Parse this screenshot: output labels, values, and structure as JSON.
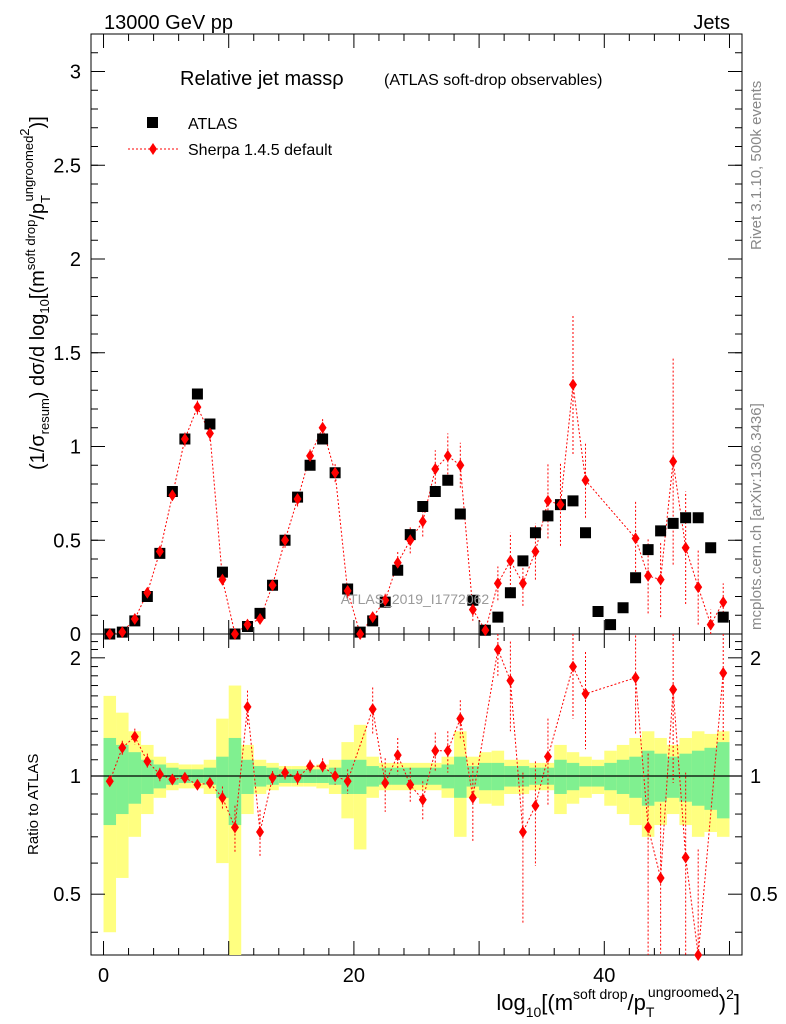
{
  "header": {
    "energy_label": "13000 GeV pp",
    "process_label": "Jets"
  },
  "side_labels": {
    "rivet": "Rivet 3.1.10,  500k events",
    "mcplots": "mcplots.cern.ch [arXiv:1306.3436]"
  },
  "chart_data": {
    "type": "scatter",
    "title": "Relative jet massρ",
    "subtitle": "(ATLAS soft-drop observables)",
    "watermark": "ATLAS_2019_I1772062",
    "ylabel": {
      "main": "(1/σ",
      "resum_sub": "resum",
      "mid": ") dσ/d log",
      "ten_sub": "10",
      "bracket": "[(m",
      "sd_sup": "soft drop",
      "slash_p": "/p",
      "t_sub": "T",
      "ungroomed_sup": "ungroomed",
      "square_sup": "2",
      "close": ")]"
    },
    "xlabel": {
      "log": "log",
      "ten_sub": "10",
      "bracket": "[(m",
      "sd_sup": "soft drop",
      "slash_p": "/p",
      "t_sub": "T",
      "ungroomed_sup": "ungroomed",
      "close": ")",
      "square_sup": "2",
      "end": "]"
    },
    "ratio_ylabel": "Ratio to ATLAS",
    "xlim": [
      -1,
      51
    ],
    "ylim": [
      0,
      3.2
    ],
    "ratio_ylim": [
      0.35,
      2.3
    ],
    "xticks": [
      0,
      20,
      40
    ],
    "xtick_labels": [
      "0",
      "20",
      "40"
    ],
    "yticks": [
      0,
      0.5,
      1,
      1.5,
      2,
      2.5,
      3
    ],
    "ytick_labels": [
      "0",
      "0.5",
      "1",
      "1.5",
      "2",
      "2.5",
      "3"
    ],
    "ratio_yticks": [
      0.5,
      1,
      2
    ],
    "ratio_ytick_labels": [
      "0.5",
      "1",
      "2"
    ],
    "legend": [
      "ATLAS",
      "Sherpa 1.4.5 default"
    ],
    "series": [
      {
        "name": "ATLAS",
        "color": "#000000",
        "marker": "square",
        "x": [
          0.5,
          1.5,
          2.5,
          3.5,
          4.5,
          5.5,
          6.5,
          7.5,
          8.5,
          9.5,
          10.5,
          11.5,
          12.5,
          13.5,
          14.5,
          15.5,
          16.5,
          17.5,
          18.5,
          19.5,
          20.5,
          21.5,
          22.5,
          23.5,
          24.5,
          25.5,
          26.5,
          27.5,
          28.5,
          29.5,
          30.5,
          31.5,
          32.5,
          33.5,
          34.5,
          35.5,
          36.5,
          37.5,
          38.5,
          39.5,
          40.5,
          41.5,
          42.5,
          43.5,
          44.5,
          45.5,
          46.5,
          47.5,
          48.5,
          49.5
        ],
        "y": [
          0.0,
          0.01,
          0.07,
          0.2,
          0.43,
          0.76,
          1.04,
          1.28,
          1.12,
          0.33,
          0.0,
          0.04,
          0.11,
          0.26,
          0.5,
          0.73,
          0.9,
          1.04,
          0.86,
          0.24,
          0.01,
          0.07,
          0.17,
          0.34,
          0.53,
          0.68,
          0.76,
          0.82,
          0.64,
          0.18,
          0.02,
          0.09,
          0.22,
          0.39,
          0.54,
          0.63,
          0.69,
          0.71,
          0.54,
          0.12,
          0.05,
          0.14,
          0.3,
          0.45,
          0.55,
          0.59,
          0.62,
          0.62,
          0.46,
          0.09
        ]
      },
      {
        "name": "Sherpa 1.4.5 default",
        "color": "#ff0000",
        "marker": "diamond",
        "x": [
          0.5,
          1.5,
          2.5,
          3.5,
          4.5,
          5.5,
          6.5,
          7.5,
          8.5,
          9.5,
          10.5,
          11.5,
          12.5,
          13.5,
          14.5,
          15.5,
          16.5,
          17.5,
          18.5,
          19.5,
          20.5,
          21.5,
          22.5,
          23.5,
          24.5,
          25.5,
          26.5,
          27.5,
          28.5,
          29.5,
          30.5,
          31.5,
          32.5,
          33.5,
          34.5,
          35.5,
          36.5,
          37.5,
          38.5,
          42.5,
          43.5,
          44.5,
          45.5,
          46.5,
          47.5,
          48.5,
          49.5
        ],
        "y": [
          0.0,
          0.01,
          0.08,
          0.22,
          0.44,
          0.74,
          1.04,
          1.21,
          1.07,
          0.29,
          0.0,
          0.05,
          0.08,
          0.26,
          0.5,
          0.72,
          0.95,
          1.1,
          0.86,
          0.23,
          0.0,
          0.09,
          0.18,
          0.38,
          0.5,
          0.6,
          0.88,
          0.95,
          0.9,
          0.13,
          0.02,
          0.27,
          0.39,
          0.27,
          0.44,
          0.71,
          0.69,
          1.33,
          0.82,
          0.51,
          0.31,
          0.29,
          0.92,
          0.46,
          0.25,
          0.05,
          0.17
        ],
        "err": [
          0.01,
          0.01,
          0.02,
          0.03,
          0.03,
          0.03,
          0.04,
          0.04,
          0.04,
          0.03,
          0.01,
          0.01,
          0.02,
          0.03,
          0.04,
          0.04,
          0.04,
          0.05,
          0.05,
          0.04,
          0.02,
          0.03,
          0.04,
          0.06,
          0.07,
          0.08,
          0.1,
          0.12,
          0.12,
          0.06,
          0.04,
          0.09,
          0.15,
          0.12,
          0.15,
          0.2,
          0.22,
          0.37,
          0.2,
          0.2,
          0.2,
          0.2,
          0.55,
          0.3,
          0.2,
          0.08,
          0.1
        ]
      }
    ],
    "ratio": {
      "x": [
        0.5,
        1.5,
        2.5,
        3.5,
        4.5,
        5.5,
        6.5,
        7.5,
        8.5,
        9.5,
        10.5,
        11.5,
        12.5,
        13.5,
        14.5,
        15.5,
        16.5,
        17.5,
        18.5,
        19.5,
        21.5,
        22.5,
        23.5,
        24.5,
        25.5,
        26.5,
        27.5,
        28.5,
        29.5,
        31.5,
        32.5,
        33.5,
        34.5,
        35.5,
        37.5,
        38.5,
        42.5,
        43.5,
        44.5,
        45.5,
        46.5,
        47.5,
        49.5
      ],
      "y": [
        0.97,
        1.18,
        1.26,
        1.09,
        1.01,
        0.98,
        0.99,
        0.95,
        0.96,
        0.88,
        0.74,
        1.5,
        0.72,
        0.99,
        1.02,
        0.99,
        1.06,
        1.06,
        1.0,
        0.97,
        1.48,
        0.96,
        1.13,
        0.95,
        0.87,
        1.16,
        1.16,
        1.4,
        0.88,
        2.1,
        1.75,
        0.72,
        0.84,
        1.12,
        1.9,
        1.62,
        1.78,
        0.74,
        0.55,
        1.66,
        0.62,
        0.35,
        1.83
      ],
      "err": [
        0.03,
        0.05,
        0.06,
        0.05,
        0.04,
        0.03,
        0.03,
        0.03,
        0.03,
        0.06,
        0.1,
        0.15,
        0.1,
        0.04,
        0.04,
        0.04,
        0.04,
        0.05,
        0.05,
        0.07,
        0.2,
        0.15,
        0.12,
        0.1,
        0.1,
        0.13,
        0.14,
        0.16,
        0.2,
        0.3,
        0.45,
        0.3,
        0.25,
        0.28,
        0.5,
        0.45,
        0.5,
        0.4,
        0.3,
        0.7,
        0.4,
        0.3,
        0.6
      ],
      "band_green": [
        0.25,
        0.2,
        0.15,
        0.1,
        0.07,
        0.05,
        0.04,
        0.04,
        0.05,
        0.12,
        0.25,
        0.1,
        0.06,
        0.05,
        0.04,
        0.04,
        0.04,
        0.04,
        0.05,
        0.1,
        0.1,
        0.06,
        0.05,
        0.05,
        0.05,
        0.05,
        0.05,
        0.07,
        0.12,
        0.06,
        0.08,
        0.08,
        0.06,
        0.06,
        0.05,
        0.05,
        0.1,
        0.08,
        0.06,
        0.06,
        0.08,
        0.1,
        0.12,
        0.16,
        0.14,
        0.12,
        0.14,
        0.16,
        0.18,
        0.22
      ],
      "band_yellow": [
        0.6,
        0.45,
        0.3,
        0.2,
        0.12,
        0.08,
        0.07,
        0.07,
        0.1,
        0.4,
        0.7,
        0.2,
        0.1,
        0.08,
        0.06,
        0.06,
        0.06,
        0.07,
        0.1,
        0.22,
        0.35,
        0.12,
        0.08,
        0.08,
        0.08,
        0.08,
        0.08,
        0.12,
        0.3,
        0.12,
        0.15,
        0.16,
        0.1,
        0.1,
        0.08,
        0.08,
        0.2,
        0.15,
        0.12,
        0.1,
        0.16,
        0.2,
        0.25,
        0.3,
        0.25,
        0.2,
        0.25,
        0.3,
        0.28,
        0.3
      ]
    }
  }
}
